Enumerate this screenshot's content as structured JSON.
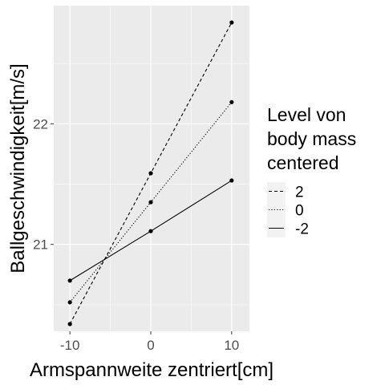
{
  "chart_data": {
    "type": "line",
    "xlabel": "Armspannweite zentriert[cm]",
    "ylabel": "Ballgeschwindigkeit[m/s]",
    "x": [
      -10,
      0,
      10
    ],
    "xlim": [
      -12,
      12.2
    ],
    "ylim": [
      20.28,
      22.98
    ],
    "x_ticks": [
      -10,
      0,
      10
    ],
    "x_tick_labels": [
      "-10",
      "0",
      "10"
    ],
    "y_ticks": [
      21,
      22
    ],
    "y_tick_labels": [
      "21",
      "22"
    ],
    "grid": true,
    "legend": {
      "title_lines": [
        "Level von",
        "body mass",
        "centered"
      ],
      "position": "right"
    },
    "series": [
      {
        "name": "2",
        "linetype": "dashed",
        "values": [
          20.34,
          21.59,
          22.84
        ]
      },
      {
        "name": "0",
        "linetype": "dotted",
        "values": [
          20.52,
          21.35,
          22.18
        ]
      },
      {
        "name": "-2",
        "linetype": "solid",
        "values": [
          20.7,
          21.11,
          21.53
        ]
      }
    ],
    "colors": {
      "panel": "#ebebeb",
      "grid": "#ffffff",
      "line": "#000000",
      "tick_text": "#4d4d4d"
    }
  }
}
